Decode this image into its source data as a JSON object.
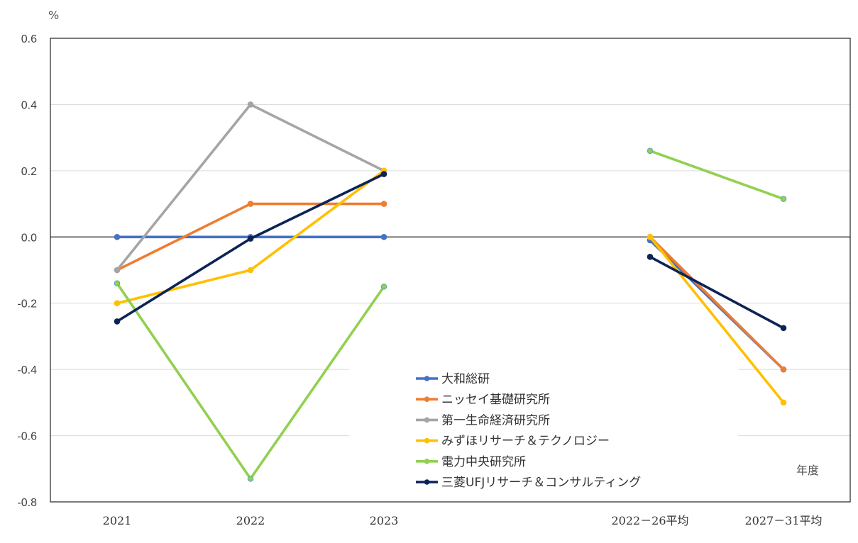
{
  "chart_data": {
    "type": "line",
    "yunit": "%",
    "xunit": "年度",
    "categories": [
      "2021",
      "2022",
      "2023",
      "2022－26平均",
      "2027－31平均"
    ],
    "ylim": [
      -0.8,
      0.6
    ],
    "yticks": [
      "0.6",
      "0.4",
      "0.2",
      "0.0",
      "-0.2",
      "-0.4",
      "-0.6",
      "-0.8"
    ],
    "ytick_values": [
      0.6,
      0.4,
      0.2,
      0.0,
      -0.2,
      -0.4,
      -0.6,
      -0.8
    ],
    "grid": "horizontal",
    "legend_position": "bottom-center",
    "segments": [
      [
        0,
        1,
        2
      ],
      [
        3,
        4
      ]
    ],
    "series": [
      {
        "name": "大和総研",
        "color": "#4472C4",
        "values": [
          0.0,
          0.0,
          0.0,
          -0.01,
          -0.4
        ]
      },
      {
        "name": "ニッセイ基礎研究所",
        "color": "#ED7D31",
        "values": [
          -0.1,
          0.1,
          0.1,
          0.0,
          -0.4
        ]
      },
      {
        "name": "第一生命経済研究所",
        "color": "#A5A5A5",
        "values": [
          -0.1,
          0.4,
          0.2,
          null,
          null
        ]
      },
      {
        "name": "みずほリサーチ＆テクノロジー",
        "color": "#FFC000",
        "values": [
          -0.2,
          -0.1,
          0.2,
          0.0,
          -0.5
        ]
      },
      {
        "name": "電力中央研究所",
        "color": "#92D050",
        "values": [
          -0.14,
          -0.73,
          -0.15,
          0.26,
          0.115
        ]
      },
      {
        "name": "三菱UFJリサーチ＆コンサルティング",
        "color": "#0C2356",
        "values": [
          -0.255,
          -0.005,
          0.19,
          -0.06,
          -0.275
        ]
      }
    ]
  }
}
